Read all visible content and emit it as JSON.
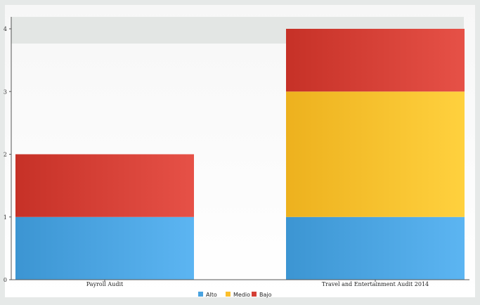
{
  "chart_data": {
    "type": "bar",
    "stacked": true,
    "categories": [
      "Payroll Audit",
      "Travel and Entertainment Audit 2014"
    ],
    "series": [
      {
        "name": "Alto",
        "values": [
          1,
          1
        ],
        "color": "#4aa3e0"
      },
      {
        "name": "Medio",
        "values": [
          0,
          2
        ],
        "color": "#fbbf2c"
      },
      {
        "name": "Bajo",
        "values": [
          1,
          1
        ],
        "color": "#d43f35"
      }
    ],
    "ylim": [
      0,
      4
    ],
    "yticks": [
      "0",
      "1",
      "2",
      "3",
      "4"
    ],
    "grid": false,
    "legend_position": "bottom"
  }
}
